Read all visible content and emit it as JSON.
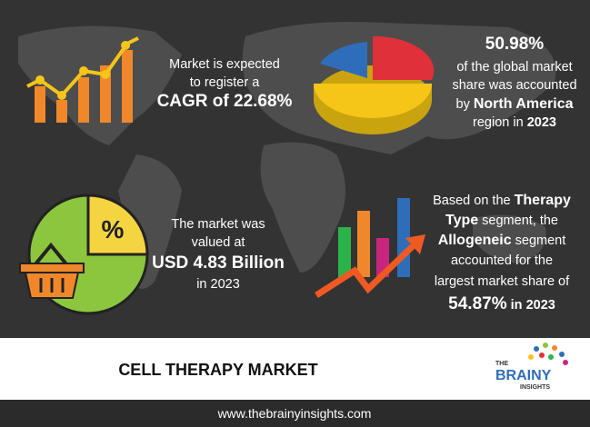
{
  "cagr": {
    "lines": [
      "Market is expected",
      "to register a"
    ],
    "highlight": "CAGR of 22.68%"
  },
  "region": {
    "highlight": "50.98%",
    "lines": [
      "of the global market",
      "share was accounted",
      "by "
    ],
    "region_name": "North America",
    "tail": "region in ",
    "year": "2023"
  },
  "value": {
    "lines": [
      "The market was",
      "valued at"
    ],
    "highlight": "USD 4.83 Billion",
    "tail": "in 2023"
  },
  "segment": {
    "l1": "Based on the ",
    "b1": "Therapy",
    "b2": "Type",
    "l2": " segment, the",
    "b3": "Allogeneic",
    "l3": " segment",
    "l4": "accounted for the",
    "l5": "largest market share of",
    "b4": "54.87%",
    "b5": " in 2023"
  },
  "icon_text": "%",
  "footer": {
    "title": "CELL THERAPY MARKET",
    "logo": [
      "THE",
      "BRAINY",
      "INSIGHTS"
    ],
    "url": "www.thebrainyinsights.com"
  }
}
